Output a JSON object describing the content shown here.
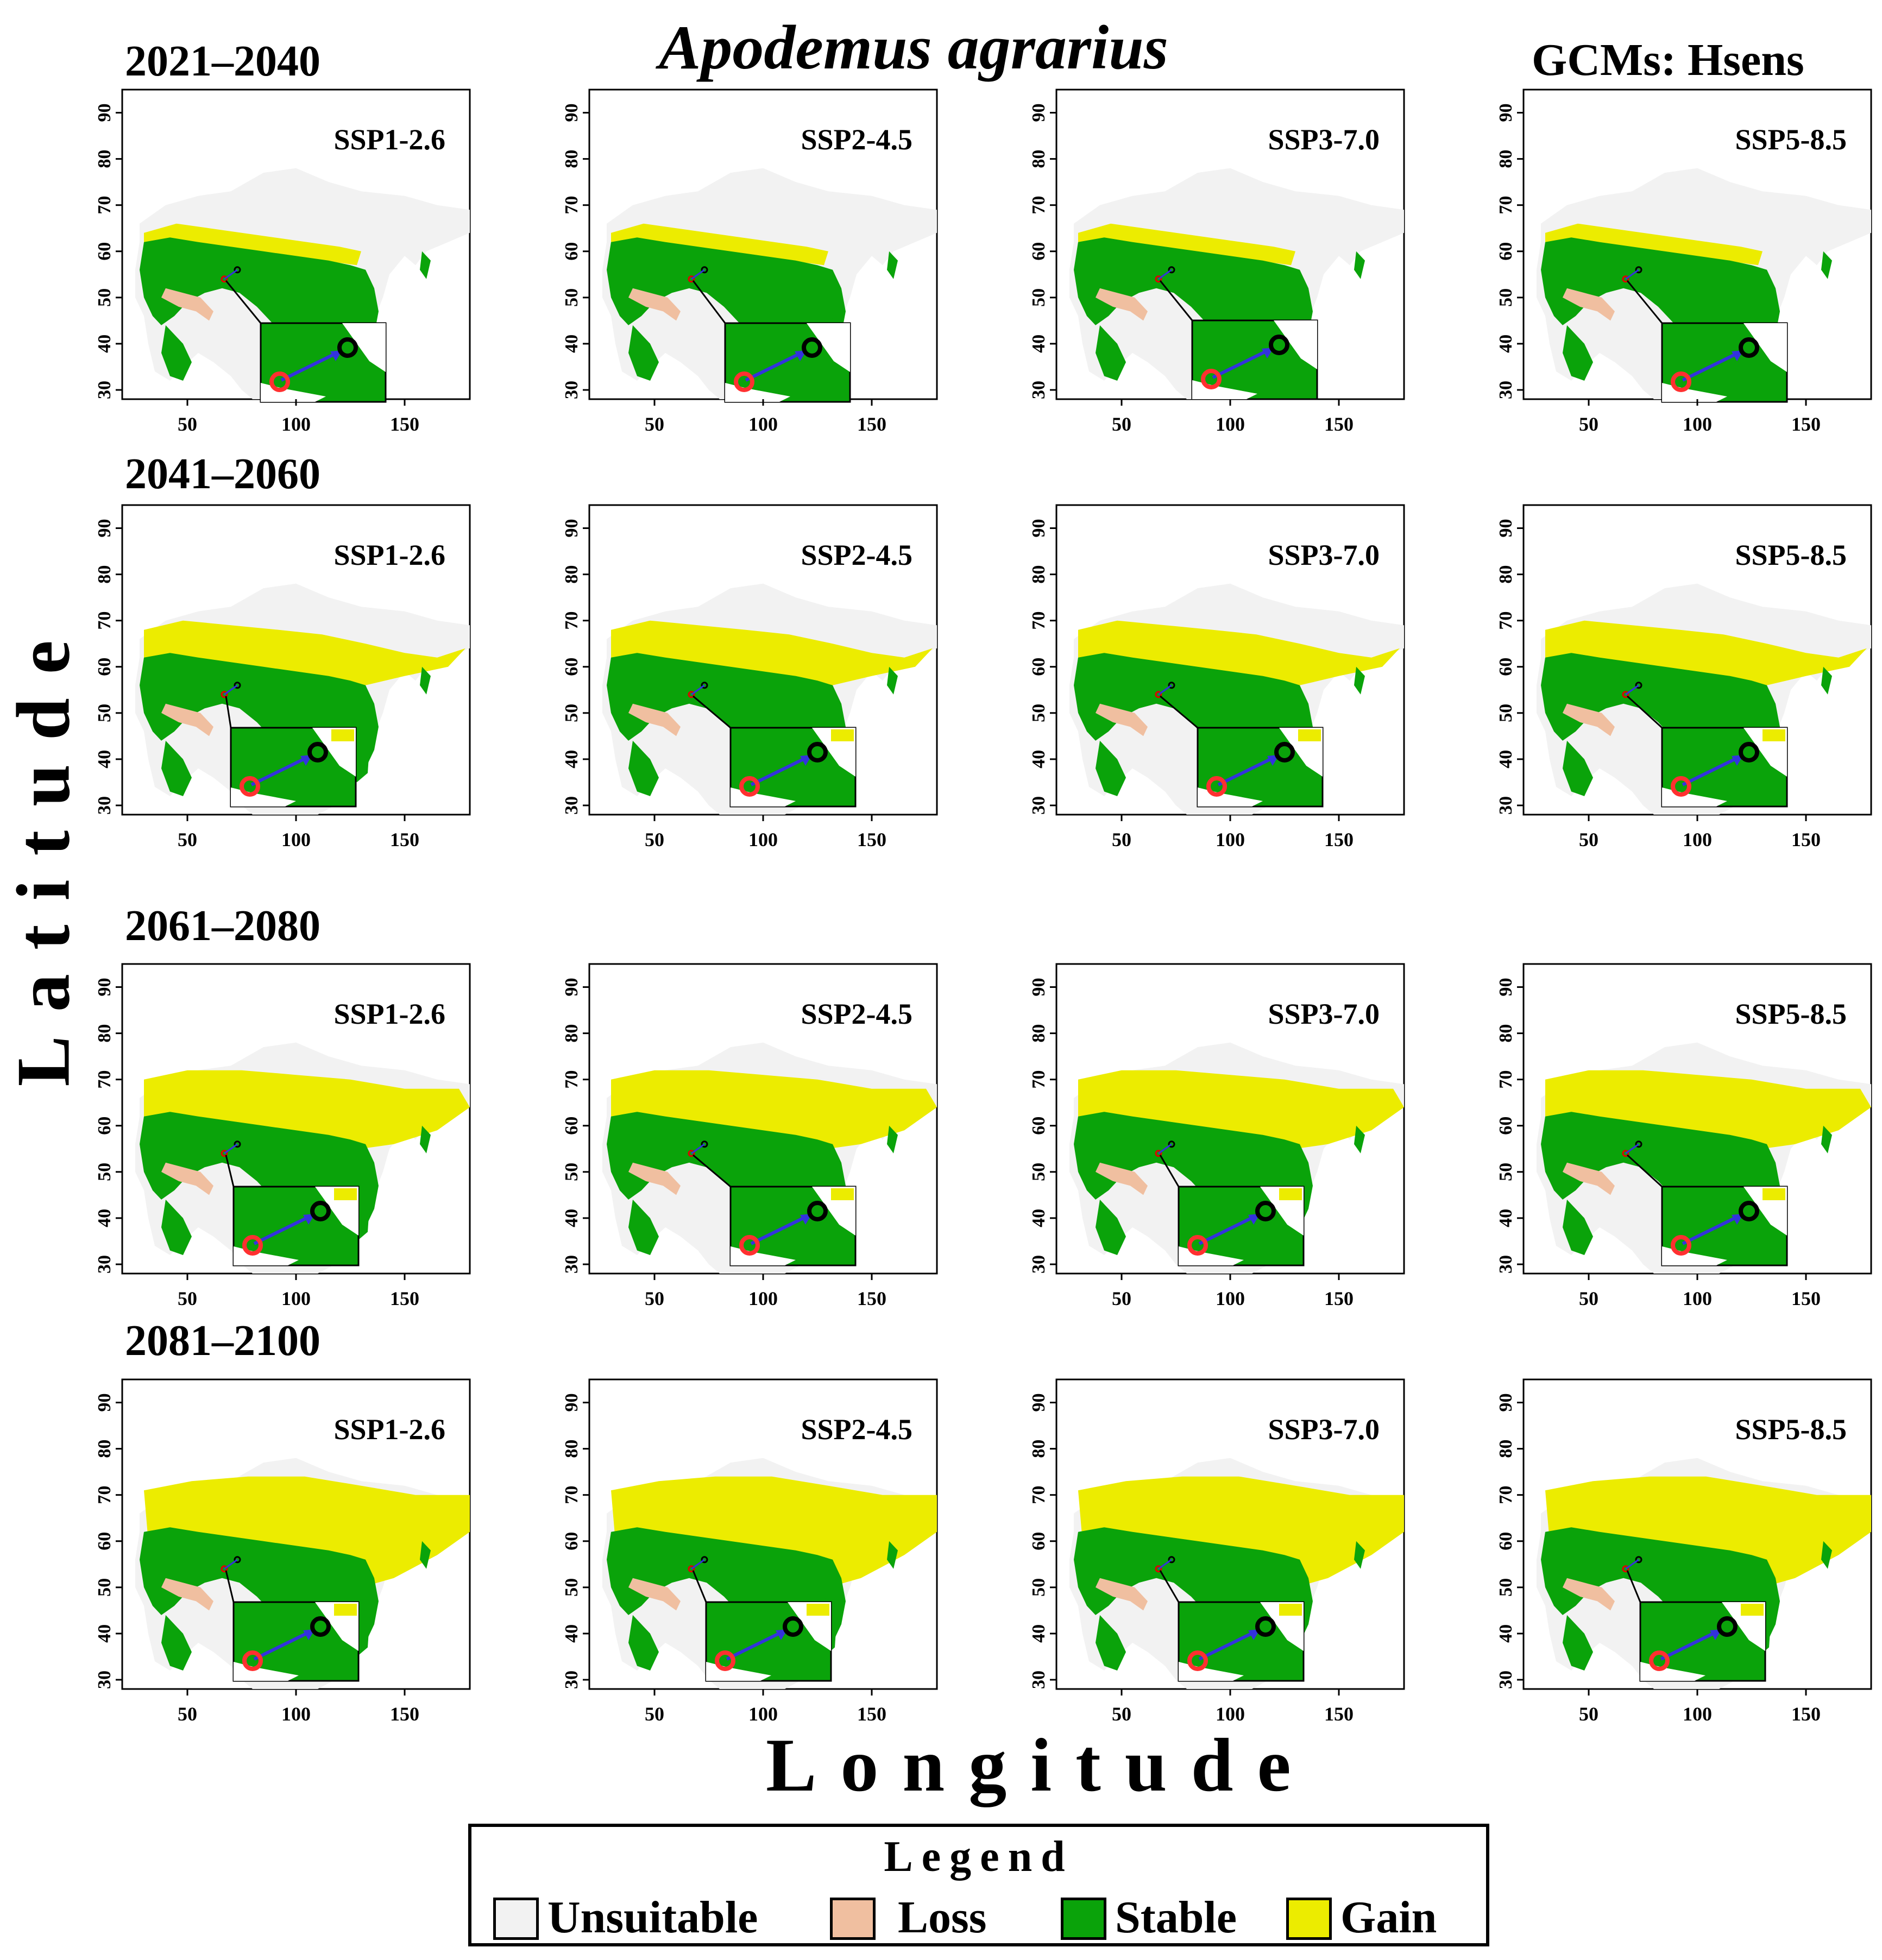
{
  "title": "Apodemus agrarius",
  "gcm_label": "GCMs: Hsens",
  "axis_labels": {
    "y": "Latitude",
    "x": "Longitude"
  },
  "periods": [
    "2021–2040",
    "2041–2060",
    "2061–2080",
    "2081–2100"
  ],
  "scenarios": [
    "SSP1-2.6",
    "SSP2-4.5",
    "SSP3-7.0",
    "SSP5-8.5"
  ],
  "x_ticks": [
    "50",
    "100",
    "150"
  ],
  "y_ticks": [
    "30",
    "40",
    "50",
    "60",
    "70",
    "80",
    "90"
  ],
  "legend": {
    "title": "Legend",
    "items": [
      {
        "label": "Unsuitable",
        "color": "#f2f2f2"
      },
      {
        "label": "Loss",
        "color": "#f0bfa0"
      },
      {
        "label": "Stable",
        "color": "#0aa30a"
      },
      {
        "label": "Gain",
        "color": "#ecec00"
      }
    ]
  },
  "map_extent": {
    "lon": [
      20,
      180
    ],
    "lat": [
      28,
      95
    ]
  }
}
